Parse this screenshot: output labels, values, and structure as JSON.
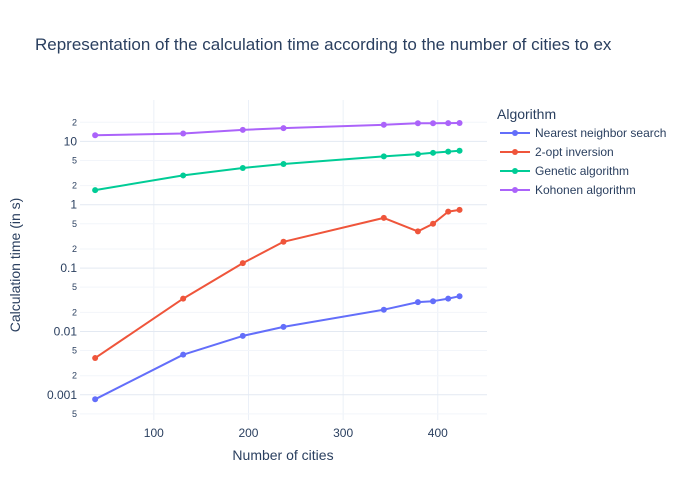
{
  "chart_data": {
    "type": "line",
    "title": "Representation of the calculation time according to the number of cities to ex",
    "xlabel": "Number of cities",
    "ylabel": "Calculation time (in s)",
    "x_scale": "linear",
    "y_scale": "log",
    "xlim": [
      22,
      452
    ],
    "ylim": [
      0.0004,
      45
    ],
    "x_ticks": [
      100,
      200,
      300,
      400
    ],
    "y_major_ticks": [
      {
        "value": 0.001,
        "label": "0.001"
      },
      {
        "value": 0.01,
        "label": "0.01"
      },
      {
        "value": 0.1,
        "label": "0.1"
      },
      {
        "value": 1,
        "label": "1"
      },
      {
        "value": 10,
        "label": "10"
      }
    ],
    "y_minor_ticks": [
      {
        "value": 0.0005,
        "label": "5"
      },
      {
        "value": 0.002,
        "label": "2"
      },
      {
        "value": 0.005,
        "label": "5"
      },
      {
        "value": 0.02,
        "label": "2"
      },
      {
        "value": 0.05,
        "label": "5"
      },
      {
        "value": 0.2,
        "label": "2"
      },
      {
        "value": 0.5,
        "label": "5"
      },
      {
        "value": 2,
        "label": "2"
      },
      {
        "value": 5,
        "label": "5"
      },
      {
        "value": 20,
        "label": "2"
      }
    ],
    "grid": true,
    "legend": {
      "title": "Algorithm",
      "position": "right"
    },
    "series": [
      {
        "name": "Nearest neighbor search",
        "color": "#636efa",
        "x": [
          38,
          131,
          194,
          237,
          343,
          379,
          395,
          411,
          423
        ],
        "y": [
          0.00085,
          0.0043,
          0.0085,
          0.0118,
          0.022,
          0.029,
          0.03,
          0.033,
          0.036
        ]
      },
      {
        "name": "2-opt inversion",
        "color": "#ef553b",
        "x": [
          38,
          131,
          194,
          237,
          343,
          379,
          395,
          411,
          423
        ],
        "y": [
          0.0038,
          0.033,
          0.12,
          0.26,
          0.62,
          0.38,
          0.5,
          0.78,
          0.83
        ]
      },
      {
        "name": "Genetic algorithm",
        "color": "#00cc96",
        "x": [
          38,
          131,
          194,
          237,
          343,
          379,
          395,
          411,
          423
        ],
        "y": [
          1.7,
          2.9,
          3.8,
          4.4,
          5.8,
          6.3,
          6.6,
          6.9,
          7.1
        ]
      },
      {
        "name": "Kohonen algorithm",
        "color": "#ab63fa",
        "x": [
          38,
          131,
          194,
          237,
          343,
          379,
          395,
          411,
          423
        ],
        "y": [
          12.5,
          13.3,
          15.2,
          16.2,
          18.3,
          19.3,
          19.3,
          19.4,
          19.5
        ]
      }
    ]
  }
}
